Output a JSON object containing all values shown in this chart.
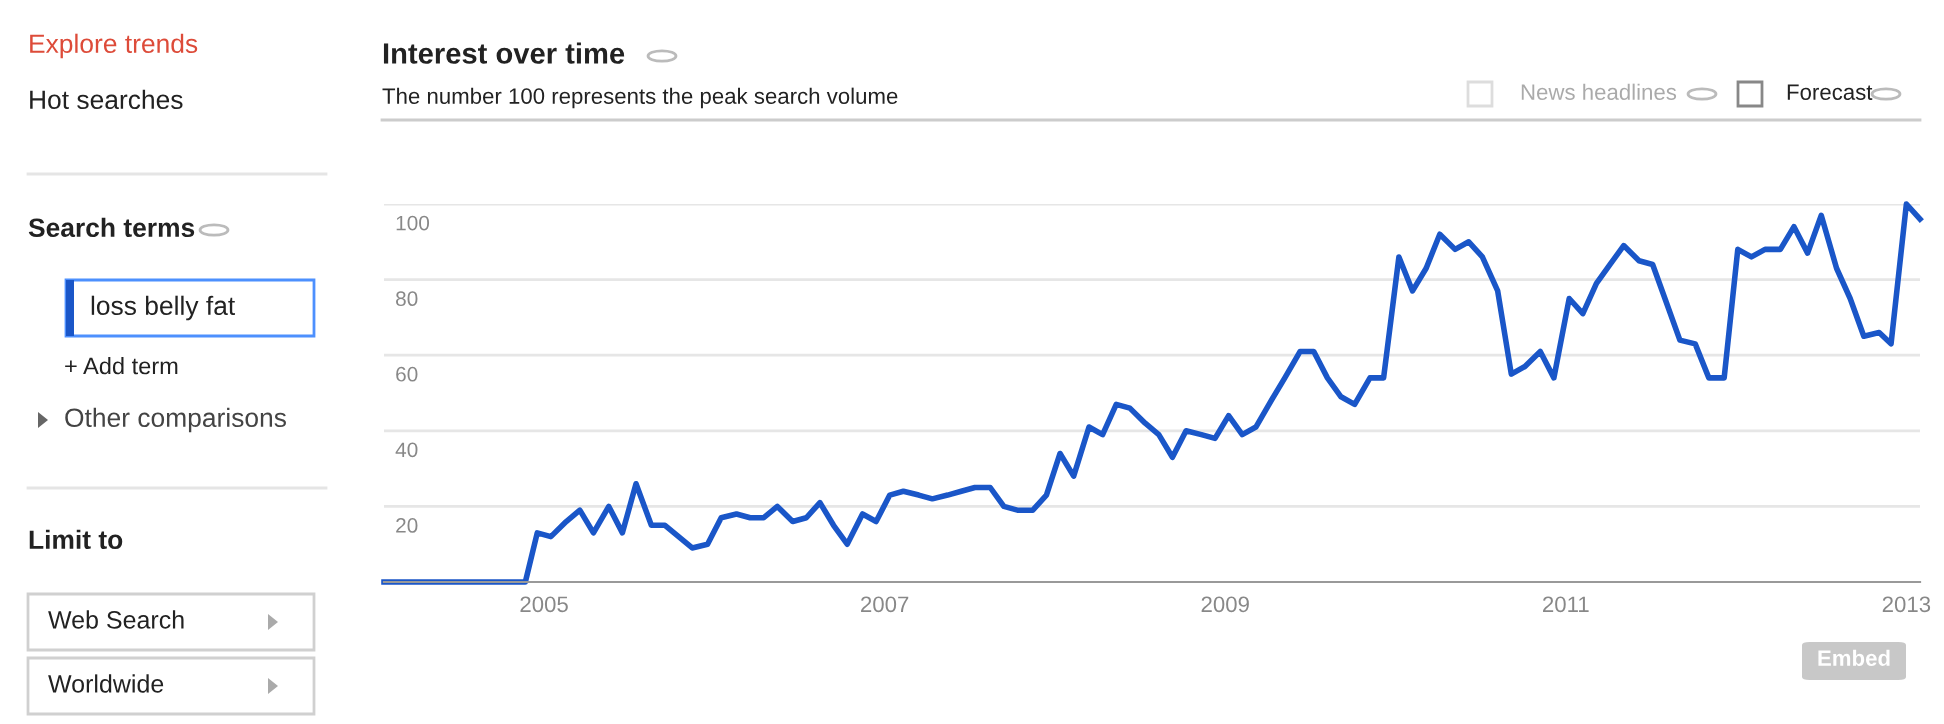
{
  "chart_data": {
    "type": "line",
    "title": "Interest over time",
    "subtitle": "The number 100 represents the peak search volume",
    "x": [
      2004.06,
      2004.89,
      2004.96,
      2005.04,
      2005.13,
      2005.21,
      2005.29,
      2005.38,
      2005.46,
      2005.54,
      2005.63,
      2005.71,
      2005.79,
      2005.87,
      2005.96,
      2006.04,
      2006.13,
      2006.21,
      2006.29,
      2006.37,
      2006.46,
      2006.54,
      2006.62,
      2006.7,
      2006.78,
      2006.87,
      2006.95,
      2007.03,
      2007.11,
      2007.2,
      2007.28,
      2007.37,
      2007.45,
      2007.53,
      2007.62,
      2007.7,
      2007.78,
      2007.87,
      2007.95,
      2008.03,
      2008.11,
      2008.2,
      2008.28,
      2008.36,
      2008.44,
      2008.53,
      2008.61,
      2008.69,
      2008.77,
      2008.86,
      2008.94,
      2009.02,
      2009.1,
      2009.18,
      2009.27,
      2009.35,
      2009.44,
      2009.52,
      2009.6,
      2009.68,
      2009.76,
      2009.85,
      2009.93,
      2010.02,
      2010.1,
      2010.18,
      2010.26,
      2010.35,
      2010.43,
      2010.51,
      2010.6,
      2010.68,
      2010.76,
      2010.85,
      2010.93,
      2011.02,
      2011.1,
      2011.18,
      2011.26,
      2011.34,
      2011.43,
      2011.51,
      2011.59,
      2011.67,
      2011.76,
      2011.84,
      2011.93,
      2012.01,
      2012.09,
      2012.17,
      2012.26,
      2012.34,
      2012.42,
      2012.5,
      2012.59,
      2012.67,
      2012.75,
      2012.84,
      2012.91,
      2013.0,
      2013.08
    ],
    "series": [
      {
        "color": "#1a56c8",
        "values": [
          0,
          0,
          13,
          12,
          16,
          19,
          13,
          20,
          13,
          26,
          15,
          15,
          12,
          9,
          10,
          17,
          18,
          17,
          17,
          20,
          16,
          17,
          21,
          15,
          10,
          18,
          16,
          23,
          24,
          23,
          22,
          23,
          24,
          25,
          25,
          20,
          19,
          19,
          23,
          34,
          28,
          41,
          39,
          47,
          46,
          42,
          39,
          33,
          40,
          39,
          38,
          44,
          39,
          41,
          48,
          54,
          61,
          61,
          54,
          49,
          47,
          54,
          54,
          86,
          77,
          83,
          92,
          88,
          90,
          86,
          77,
          55,
          57,
          61,
          54,
          75,
          71,
          79,
          84,
          89,
          85,
          84,
          74,
          64,
          63,
          54,
          54,
          88,
          86,
          88,
          88,
          94,
          87,
          97,
          83,
          75,
          65,
          66,
          63,
          100,
          96
        ]
      }
    ],
    "xlim": [
      2004.06,
      2013.08
    ],
    "xticks": [
      2005,
      2007,
      2009,
      2011,
      2013
    ],
    "ylim": [
      0,
      100
    ],
    "yticks": [
      20,
      40,
      60,
      80,
      100
    ],
    "grid": "y",
    "legend": false,
    "marker": "none",
    "line_style": "solid",
    "annotations": [
      "Explore trends",
      "Hot searches",
      "Search terms",
      "loss belly fat",
      "+ Add term",
      "Other comparisons",
      "Limit to",
      "Web Search",
      "Worldwide",
      "News headlines",
      "Forecast",
      "Embed"
    ]
  }
}
